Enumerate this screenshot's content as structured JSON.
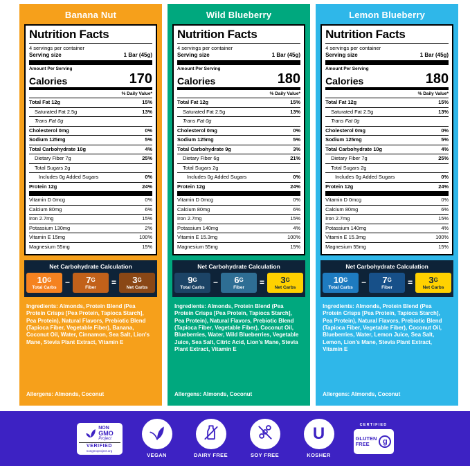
{
  "panels": [
    {
      "flavor": "Banana Nut",
      "theme": {
        "bg": "#F6A01B",
        "title_color": "#FFFFFF",
        "netcarb_bg": "#0E2338"
      },
      "nutrition": {
        "title": "Nutrition Facts",
        "servings_per_container": "4 servings per container",
        "serving_size_label": "Serving size",
        "serving_size_value": "1 Bar (45g)",
        "amount_per_serving": "Amount Per Serving",
        "calories_label": "Calories",
        "calories_value": "170",
        "daily_value_header": "% Daily Value*",
        "rows": [
          {
            "label": "Total Fat 12g",
            "dv": "15%",
            "cls": "bold"
          },
          {
            "label": "Saturated Fat 2.5g",
            "dv": "13%",
            "cls": "indent"
          },
          {
            "label": "Trans Fat 0g",
            "dv": "",
            "cls": "indent italic"
          },
          {
            "label": "Cholesterol 0mg",
            "dv": "0%",
            "cls": "bold"
          },
          {
            "label": "Sodium 125mg",
            "dv": "5%",
            "cls": "bold"
          },
          {
            "label": "Total Carbohydrate 10g",
            "dv": "4%",
            "cls": "bold"
          },
          {
            "label": "Dietary Fiber 7g",
            "dv": "25%",
            "cls": "indent"
          },
          {
            "label": "Total Sugars 2g",
            "dv": "",
            "cls": "indent"
          },
          {
            "label": "Includes 0g Added Sugars",
            "dv": "0%",
            "cls": "indent2"
          },
          {
            "label": "Protein 12g",
            "dv": "24%",
            "cls": "bold"
          }
        ],
        "vitamins": [
          {
            "label": "Vitamin D 0mcg",
            "dv": "0%"
          },
          {
            "label": "Calcium 80mg",
            "dv": "6%"
          },
          {
            "label": "Iron 2.7mg",
            "dv": "15%"
          },
          {
            "label": "Potassium 130mg",
            "dv": "2%"
          },
          {
            "label": "Vitamin E 15mg",
            "dv": "100%"
          },
          {
            "label": "Magnesium 55mg",
            "dv": "15%"
          }
        ]
      },
      "net_carb": {
        "title": "Net Carbohydrate Calculation",
        "minus": "−",
        "equals": "=",
        "boxes": [
          {
            "value": "10",
            "unit": "G",
            "label": "Total Carbs",
            "bg": "#F58220",
            "fg": "#FFFFFF"
          },
          {
            "value": "7",
            "unit": "G",
            "label": "Fiber",
            "bg": "#C2611A",
            "fg": "#FFFFFF"
          },
          {
            "value": "3",
            "unit": "G",
            "label": "Net Carbs",
            "bg": "#8A4715",
            "fg": "#FFFFFF"
          }
        ]
      },
      "ingredients_label": "Ingredients:",
      "ingredients": "Almonds, Protein Blend (Pea Protein Crisps [Pea Protein, Tapioca Starch], Pea Protein), Natural Flavors, Prebiotic Blend (Tapioca Fiber, Vegetable Fiber), Banana, Coconut Oil, Water, Cinnamon, Sea Salt, Lion's Mane, Stevia Plant Extract, Vitamin E",
      "allergens_label": "Allergens:",
      "allergens": "Almonds, Coconut"
    },
    {
      "flavor": "Wild Blueberry",
      "theme": {
        "bg": "#00A87E",
        "title_color": "#FFFFFF",
        "netcarb_bg": "#0E2338"
      },
      "nutrition": {
        "title": "Nutrition Facts",
        "servings_per_container": "4 servings per container",
        "serving_size_label": "Serving size",
        "serving_size_value": "1 Bar (45g)",
        "amount_per_serving": "Amount Per Serving",
        "calories_label": "Calories",
        "calories_value": "180",
        "daily_value_header": "% Daily Value*",
        "rows": [
          {
            "label": "Total Fat 12g",
            "dv": "15%",
            "cls": "bold"
          },
          {
            "label": "Saturated Fat 2.5g",
            "dv": "13%",
            "cls": "indent"
          },
          {
            "label": "Trans Fat 0g",
            "dv": "",
            "cls": "indent italic"
          },
          {
            "label": "Cholesterol 0mg",
            "dv": "0%",
            "cls": "bold"
          },
          {
            "label": "Sodium 125mg",
            "dv": "5%",
            "cls": "bold"
          },
          {
            "label": "Total Carbohydrate 9g",
            "dv": "3%",
            "cls": "bold"
          },
          {
            "label": "Dietary Fiber 6g",
            "dv": "21%",
            "cls": "indent"
          },
          {
            "label": "Total Sugars 2g",
            "dv": "",
            "cls": "indent"
          },
          {
            "label": "Includes 0g Added Sugars",
            "dv": "0%",
            "cls": "indent2"
          },
          {
            "label": "Protein 12g",
            "dv": "24%",
            "cls": "bold"
          }
        ],
        "vitamins": [
          {
            "label": "Vitamin D 0mcg",
            "dv": "0%"
          },
          {
            "label": "Calcium 80mg",
            "dv": "6%"
          },
          {
            "label": "Iron 2.7mg",
            "dv": "15%"
          },
          {
            "label": "Potassium 140mg",
            "dv": "4%"
          },
          {
            "label": "Vitamin E 15.3mg",
            "dv": "100%"
          },
          {
            "label": "Magnesium 55mg",
            "dv": "15%"
          }
        ]
      },
      "net_carb": {
        "title": "Net Carbohydrate Calculation",
        "minus": "−",
        "equals": "=",
        "boxes": [
          {
            "value": "9",
            "unit": "G",
            "label": "Total Carbs",
            "bg": "#1C4466",
            "fg": "#FFFFFF"
          },
          {
            "value": "6",
            "unit": "G",
            "label": "Fiber",
            "bg": "#2E6E94",
            "fg": "#FFFFFF"
          },
          {
            "value": "3",
            "unit": "G",
            "label": "Net Carbs",
            "bg": "#FFD100",
            "fg": "#0E2338"
          }
        ]
      },
      "ingredients_label": "Ingredients:",
      "ingredients": "Almonds, Protein Blend (Pea Protein Crisps [Pea Protein, Tapioca Starch], Pea Protein), Natural Flavors, Prebiotic Blend (Tapioca Fiber, Vegetable Fiber), Coconut Oil, Blueberries, Water, Wild Blueberries, Vegetable Juice, Sea Salt, Citric Acid, Lion's Mane, Stevia Plant Extract, Vitamin E",
      "allergens_label": "Allergens:",
      "allergens": "Almonds, Coconut"
    },
    {
      "flavor": "Lemon Blueberry",
      "theme": {
        "bg": "#2FB7E9",
        "title_color": "#FFFFFF",
        "netcarb_bg": "#0E2338"
      },
      "nutrition": {
        "title": "Nutrition Facts",
        "servings_per_container": "4 servings per container",
        "serving_size_label": "Serving size",
        "serving_size_value": "1 Bar (45g)",
        "amount_per_serving": "Amount Per Serving",
        "calories_label": "Calories",
        "calories_value": "180",
        "daily_value_header": "% Daily Value*",
        "rows": [
          {
            "label": "Total Fat 12g",
            "dv": "15%",
            "cls": "bold"
          },
          {
            "label": "Saturated Fat 2.5g",
            "dv": "13%",
            "cls": "indent"
          },
          {
            "label": "Trans Fat 0g",
            "dv": "",
            "cls": "indent italic"
          },
          {
            "label": "Cholesterol 0mg",
            "dv": "0%",
            "cls": "bold"
          },
          {
            "label": "Sodium 125mg",
            "dv": "5%",
            "cls": "bold"
          },
          {
            "label": "Total Carbohydrate 10g",
            "dv": "4%",
            "cls": "bold"
          },
          {
            "label": "Dietary Fiber 7g",
            "dv": "25%",
            "cls": "indent"
          },
          {
            "label": "Total Sugars 2g",
            "dv": "",
            "cls": "indent"
          },
          {
            "label": "Includes 0g Added Sugars",
            "dv": "0%",
            "cls": "indent2"
          },
          {
            "label": "Protein 12g",
            "dv": "24%",
            "cls": "bold"
          }
        ],
        "vitamins": [
          {
            "label": "Vitamin D 0mcg",
            "dv": "0%"
          },
          {
            "label": "Calcium 80mg",
            "dv": "6%"
          },
          {
            "label": "Iron 2.7mg",
            "dv": "15%"
          },
          {
            "label": "Potassium 140mg",
            "dv": "4%"
          },
          {
            "label": "Vitamin E 15.3mg",
            "dv": "100%"
          },
          {
            "label": "Magnesium 55mg",
            "dv": "15%"
          }
        ]
      },
      "net_carb": {
        "title": "Net Carbohydrate Calculation",
        "minus": "−",
        "equals": "=",
        "boxes": [
          {
            "value": "10",
            "unit": "G",
            "label": "Total Carbs",
            "bg": "#1E7BC0",
            "fg": "#FFFFFF"
          },
          {
            "value": "7",
            "unit": "G",
            "label": "Fiber",
            "bg": "#175089",
            "fg": "#FFFFFF"
          },
          {
            "value": "3",
            "unit": "G",
            "label": "Net Carbs",
            "bg": "#FFD100",
            "fg": "#0E2338"
          }
        ]
      },
      "ingredients_label": "Ingredients:",
      "ingredients": "Almonds, Protein Blend (Pea Protein Crisps [Pea Protein, Tapioca Starch], Pea Protein), Natural Flavors, Prebiotic Blend (Tapioca Fiber, Vegetable Fiber), Coconut Oil, Blueberries, Water, Lemon Juice, Sea Salt, Lemon, Lion's Mane, Stevia Plant Extract, Vitamin E",
      "allergens_label": "Allergens:",
      "allergens": "Almonds, Coconut"
    }
  ],
  "footer": {
    "bg": "#3D22C3",
    "non_gmo": {
      "line1": "NON",
      "line2": "GMO",
      "line3": "Project",
      "verified": "VERIFIED",
      "url": "nongmoproject.org"
    },
    "badges": [
      {
        "label": "VEGAN",
        "icon": "vegan-leaf-icon"
      },
      {
        "label": "DAIRY FREE",
        "icon": "dairy-free-bottle-icon"
      },
      {
        "label": "SOY FREE",
        "icon": "soy-free-beans-icon"
      },
      {
        "label": "KOSHER",
        "icon": "kosher-u-icon"
      }
    ],
    "gluten_free": {
      "certified": "CERTIFIED",
      "line1": "GLUTEN",
      "line2": "FREE",
      "g": "g"
    }
  }
}
